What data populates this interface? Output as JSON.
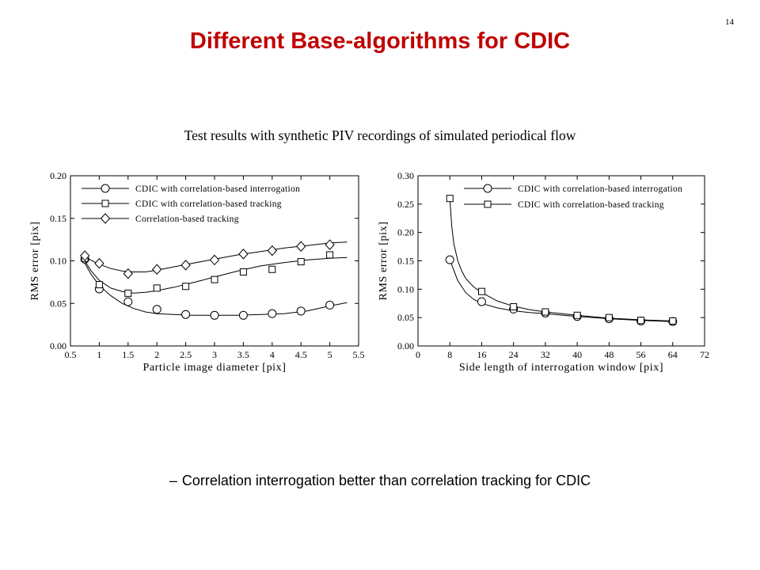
{
  "slide": {
    "page_number": "14",
    "title": "Different Base-algorithms for CDIC",
    "subtitle": "Test results with synthetic PIV recordings of simulated periodical flow",
    "bullet_marker": "–",
    "bullet_text": "Correlation interrogation better than correlation tracking for CDIC"
  },
  "chart_data": [
    {
      "type": "scatter",
      "title": "",
      "xlabel": "Particle image diameter [pix]",
      "ylabel": "RMS error [pix]",
      "xlim": [
        0.5,
        5.5
      ],
      "ylim": [
        0.0,
        0.2
      ],
      "xticks": [
        0.5,
        1,
        1.5,
        2,
        2.5,
        3,
        3.5,
        4,
        4.5,
        5,
        5.5
      ],
      "xtick_labels": [
        "0.5",
        "1",
        "1.5",
        "2",
        "2.5",
        "3",
        "3.5",
        "4",
        "4.5",
        "5",
        "5.5"
      ],
      "yticks": [
        0.0,
        0.05,
        0.1,
        0.15,
        0.2
      ],
      "ytick_labels": [
        "0.00",
        "0.05",
        "0.10",
        "0.15",
        "0.20"
      ],
      "grid": false,
      "legend_position": "top-left",
      "series": [
        {
          "name": "CDIC with correlation-based interrogation",
          "marker": "circle",
          "x": [
            0.75,
            1.0,
            1.5,
            2.0,
            2.5,
            3.0,
            3.5,
            4.0,
            4.5,
            5.0
          ],
          "y": [
            0.102,
            0.067,
            0.052,
            0.043,
            0.037,
            0.036,
            0.036,
            0.038,
            0.041,
            0.048
          ],
          "curve_x": [
            0.7,
            0.85,
            1.0,
            1.2,
            1.4,
            1.6,
            1.8,
            2.0,
            2.3,
            2.6,
            3.0,
            3.4,
            3.8,
            4.2,
            4.6,
            5.0,
            5.3
          ],
          "curve_y": [
            0.103,
            0.085,
            0.071,
            0.059,
            0.05,
            0.044,
            0.04,
            0.038,
            0.037,
            0.036,
            0.036,
            0.036,
            0.037,
            0.038,
            0.041,
            0.047,
            0.051
          ]
        },
        {
          "name": "CDIC with correlation-based tracking",
          "marker": "square",
          "x": [
            0.75,
            1.0,
            1.5,
            2.0,
            2.5,
            3.0,
            3.5,
            4.0,
            4.5,
            5.0
          ],
          "y": [
            0.103,
            0.072,
            0.062,
            0.068,
            0.07,
            0.078,
            0.087,
            0.09,
            0.099,
            0.107
          ],
          "curve_x": [
            0.7,
            0.85,
            1.0,
            1.2,
            1.4,
            1.6,
            1.8,
            2.0,
            2.3,
            2.6,
            3.0,
            3.4,
            3.8,
            4.2,
            4.6,
            5.0,
            5.3
          ],
          "curve_y": [
            0.105,
            0.089,
            0.077,
            0.068,
            0.064,
            0.062,
            0.063,
            0.065,
            0.069,
            0.074,
            0.081,
            0.088,
            0.094,
            0.098,
            0.101,
            0.103,
            0.104
          ]
        },
        {
          "name": "Correlation-based tracking",
          "marker": "diamond",
          "x": [
            0.75,
            1.0,
            1.5,
            2.0,
            2.5,
            3.0,
            3.5,
            4.0,
            4.5,
            5.0
          ],
          "y": [
            0.106,
            0.097,
            0.085,
            0.09,
            0.095,
            0.101,
            0.108,
            0.112,
            0.117,
            0.119
          ],
          "curve_x": [
            0.7,
            0.85,
            1.0,
            1.2,
            1.4,
            1.6,
            1.8,
            2.0,
            2.3,
            2.6,
            3.0,
            3.4,
            3.8,
            4.2,
            4.6,
            5.0,
            5.3
          ],
          "curve_y": [
            0.108,
            0.101,
            0.096,
            0.091,
            0.088,
            0.087,
            0.087,
            0.089,
            0.093,
            0.097,
            0.102,
            0.107,
            0.111,
            0.115,
            0.118,
            0.121,
            0.122
          ]
        }
      ]
    },
    {
      "type": "scatter",
      "title": "",
      "xlabel": "Side length of interrogation window [pix]",
      "ylabel": "RMS error [pix]",
      "xlim": [
        0,
        72
      ],
      "ylim": [
        0.0,
        0.3
      ],
      "xticks": [
        0,
        8,
        16,
        24,
        32,
        40,
        48,
        56,
        64,
        72
      ],
      "xtick_labels": [
        "0",
        "8",
        "16",
        "24",
        "32",
        "40",
        "48",
        "56",
        "64",
        "72"
      ],
      "yticks": [
        0.0,
        0.05,
        0.1,
        0.15,
        0.2,
        0.25,
        0.3
      ],
      "ytick_labels": [
        "0.00",
        "0.05",
        "0.10",
        "0.15",
        "0.20",
        "0.25",
        "0.30"
      ],
      "grid": false,
      "legend_position": "top-right",
      "series": [
        {
          "name": "CDIC with correlation-based interrogation",
          "marker": "circle",
          "x": [
            8,
            16,
            24,
            32,
            40,
            48,
            56,
            64
          ],
          "y": [
            0.152,
            0.078,
            0.065,
            0.058,
            0.052,
            0.048,
            0.044,
            0.043
          ],
          "curve_x": [
            8,
            10,
            12,
            14,
            16,
            20,
            24,
            28,
            32,
            40,
            48,
            56,
            64
          ],
          "curve_y": [
            0.152,
            0.115,
            0.094,
            0.082,
            0.075,
            0.067,
            0.062,
            0.059,
            0.057,
            0.052,
            0.048,
            0.045,
            0.043
          ]
        },
        {
          "name": "CDIC with correlation-based tracking",
          "marker": "square",
          "x": [
            8,
            16,
            24,
            32,
            40,
            48,
            56,
            64
          ],
          "y": [
            0.26,
            0.096,
            0.069,
            0.06,
            0.054,
            0.05,
            0.045,
            0.044
          ],
          "curve_x": [
            8,
            8.5,
            9,
            10,
            11,
            12,
            14,
            16,
            20,
            24,
            28,
            32,
            40,
            48,
            56,
            64
          ],
          "curve_y": [
            0.26,
            0.21,
            0.18,
            0.15,
            0.132,
            0.119,
            0.104,
            0.094,
            0.079,
            0.07,
            0.064,
            0.06,
            0.054,
            0.049,
            0.046,
            0.044
          ]
        }
      ]
    }
  ]
}
